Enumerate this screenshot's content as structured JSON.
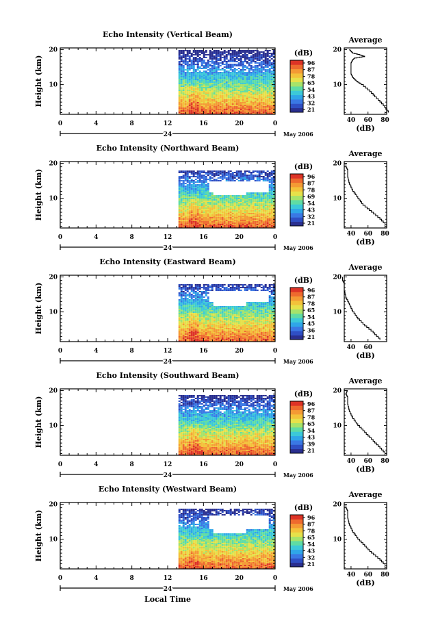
{
  "figure": {
    "xlabel": "Local Time",
    "date_label": "May 2006",
    "day_label": "24"
  },
  "chart_data": [
    {
      "type": "heatmap",
      "title": "Echo Intensity (Vertical Beam)",
      "ylabel": "Height (km)",
      "xlim": [
        0,
        24
      ],
      "ylim": [
        1.5,
        20.5
      ],
      "x_ticks": [
        "0",
        "4",
        "8",
        "12",
        "16",
        "20",
        "0"
      ],
      "y_ticks": [
        "20",
        "10"
      ],
      "data_start_hour": 13.2,
      "top_height_km": 20,
      "gap_km": [
        null,
        null
      ],
      "colorbar": {
        "unit": "(dB)",
        "ticks": [
          "96",
          "87",
          "78",
          "65",
          "54",
          "43",
          "32",
          "21"
        ]
      },
      "average": {
        "title": "Average",
        "xlabel": "(dB)",
        "x_ticks": [
          "40",
          "60",
          "80"
        ],
        "heights": [
          2,
          4,
          6,
          8,
          10,
          11,
          12,
          13,
          14,
          15,
          16,
          17,
          17.5,
          18,
          18.5,
          19,
          19.5,
          20
        ],
        "db": [
          84,
          78,
          70,
          62,
          52,
          46,
          42,
          40,
          40,
          40,
          40,
          42,
          44,
          56,
          50,
          42,
          40,
          38
        ]
      }
    },
    {
      "type": "heatmap",
      "title": "Echo Intensity (Northward Beam)",
      "ylabel": "Height (km)",
      "xlim": [
        0,
        24
      ],
      "ylim": [
        1.5,
        20.5
      ],
      "x_ticks": [
        "0",
        "4",
        "8",
        "12",
        "16",
        "20",
        "0"
      ],
      "y_ticks": [
        "20",
        "10"
      ],
      "data_start_hour": 13.2,
      "top_height_km": 18,
      "gap_km": [
        12,
        15
      ],
      "colorbar": {
        "unit": "(dB)",
        "ticks": [
          "96",
          "87",
          "78",
          "69",
          "54",
          "43",
          "32",
          "21"
        ]
      },
      "average": {
        "title": "Average",
        "xlabel": "(dB)",
        "x_ticks": [
          "40",
          "60",
          "80"
        ],
        "heights": [
          2,
          4,
          6,
          8,
          10,
          12,
          14,
          16,
          17,
          18,
          19,
          20
        ],
        "db": [
          82,
          74,
          64,
          54,
          48,
          42,
          38,
          36,
          36,
          36,
          34,
          34
        ]
      }
    },
    {
      "type": "heatmap",
      "title": "Echo Intensity (Eastward Beam)",
      "ylabel": "Height (km)",
      "xlim": [
        0,
        24
      ],
      "ylim": [
        1.5,
        20.5
      ],
      "x_ticks": [
        "0",
        "4",
        "8",
        "12",
        "16",
        "20",
        "0"
      ],
      "y_ticks": [
        "20",
        "10"
      ],
      "data_start_hour": 13.2,
      "top_height_km": 18,
      "gap_km": [
        13,
        16
      ],
      "colorbar": {
        "unit": "(dB)",
        "ticks": [
          "96",
          "87",
          "78",
          "65",
          "54",
          "45",
          "36",
          "21"
        ]
      },
      "average": {
        "title": "Average",
        "xlabel": "(dB)",
        "x_ticks": [
          "40",
          "60"
        ],
        "heights": [
          2,
          4,
          6,
          8,
          10,
          12,
          14,
          16,
          17,
          18,
          19,
          20
        ],
        "db": [
          74,
          66,
          56,
          48,
          42,
          38,
          34,
          32,
          32,
          32,
          30,
          30
        ]
      }
    },
    {
      "type": "heatmap",
      "title": "Echo Intensity (Southward Beam)",
      "ylabel": "Height (km)",
      "xlim": [
        0,
        24
      ],
      "ylim": [
        1.5,
        20.5
      ],
      "x_ticks": [
        "0",
        "4",
        "8",
        "12",
        "16",
        "20",
        "0"
      ],
      "y_ticks": [
        "20",
        "10"
      ],
      "data_start_hour": 13.2,
      "top_height_km": 19,
      "gap_km": [
        null,
        null
      ],
      "colorbar": {
        "unit": "(dB)",
        "ticks": [
          "96",
          "87",
          "78",
          "65",
          "54",
          "43",
          "39",
          "21"
        ]
      },
      "average": {
        "title": "Average",
        "xlabel": "(dB)",
        "x_ticks": [
          "40",
          "60",
          "80"
        ],
        "heights": [
          2,
          4,
          6,
          8,
          10,
          12,
          14,
          16,
          17,
          18,
          19,
          20
        ],
        "db": [
          80,
          72,
          64,
          56,
          48,
          42,
          38,
          36,
          36,
          36,
          34,
          36
        ]
      }
    },
    {
      "type": "heatmap",
      "title": "Echo Intensity (Westward Beam)",
      "ylabel": "Height (km)",
      "xlim": [
        0,
        24
      ],
      "ylim": [
        1.5,
        20.5
      ],
      "x_ticks": [
        "0",
        "4",
        "8",
        "12",
        "16",
        "20",
        "0"
      ],
      "y_ticks": [
        "20",
        "10"
      ],
      "data_start_hour": 13.2,
      "top_height_km": 19,
      "gap_km": [
        13,
        17
      ],
      "colorbar": {
        "unit": "(dB)",
        "ticks": [
          "96",
          "87",
          "78",
          "65",
          "54",
          "43",
          "32",
          "21"
        ]
      },
      "average": {
        "title": "Average",
        "xlabel": "(dB)",
        "x_ticks": [
          "40",
          "60",
          "80"
        ],
        "heights": [
          2,
          4,
          6,
          8,
          10,
          12,
          14,
          16,
          17,
          18,
          19,
          20
        ],
        "db": [
          82,
          74,
          64,
          56,
          48,
          42,
          38,
          36,
          36,
          36,
          34,
          34
        ]
      }
    }
  ]
}
